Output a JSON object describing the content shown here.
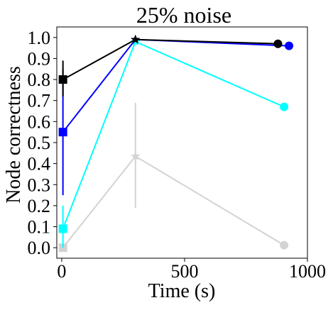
{
  "chart_data": {
    "type": "line",
    "title": "25% noise",
    "xlabel": "Time (s)",
    "ylabel": "Node correctness",
    "xlim": [
      -20,
      1000
    ],
    "ylim": [
      -0.05,
      1.05
    ],
    "xticks": [
      0,
      500,
      1000
    ],
    "yticks": [
      0.0,
      0.1,
      0.2,
      0.3,
      0.4,
      0.5,
      0.6,
      0.7,
      0.8,
      0.9,
      1.0
    ],
    "grid": false,
    "legend": "none",
    "series": [
      {
        "color": "#d3d3d3",
        "points": [
          {
            "x": 5,
            "y": 0.0,
            "marker": "square",
            "err": [
              0.0,
              0.0
            ]
          },
          {
            "x": 300,
            "y": 0.435,
            "marker": "star",
            "err": [
              0.19,
              0.69
            ]
          },
          {
            "x": 905,
            "y": 0.012,
            "marker": "circle",
            "err": [
              0.012,
              0.012
            ]
          }
        ]
      },
      {
        "color": "#00ffff",
        "points": [
          {
            "x": 5,
            "y": 0.09,
            "marker": "square",
            "err": [
              0.0,
              0.2
            ]
          },
          {
            "x": 300,
            "y": 0.98,
            "marker": "star",
            "err": [
              0.98,
              0.98
            ]
          },
          {
            "x": 905,
            "y": 0.67,
            "marker": "circle",
            "err": [
              0.67,
              0.67
            ]
          }
        ]
      },
      {
        "color": "#0000ff",
        "points": [
          {
            "x": 5,
            "y": 0.55,
            "marker": "square",
            "err": [
              0.25,
              0.85
            ]
          },
          {
            "x": 300,
            "y": 0.99,
            "marker": "star",
            "err": [
              0.99,
              0.99
            ]
          },
          {
            "x": 925,
            "y": 0.96,
            "marker": "circle",
            "err": [
              0.96,
              0.96
            ]
          }
        ]
      },
      {
        "color": "#000000",
        "points": [
          {
            "x": 5,
            "y": 0.8,
            "marker": "square",
            "err": [
              0.72,
              0.89
            ]
          },
          {
            "x": 300,
            "y": 0.99,
            "marker": "star",
            "err": [
              0.99,
              0.99
            ]
          },
          {
            "x": 880,
            "y": 0.97,
            "marker": "circle",
            "err": [
              0.97,
              0.97
            ]
          }
        ]
      }
    ]
  }
}
